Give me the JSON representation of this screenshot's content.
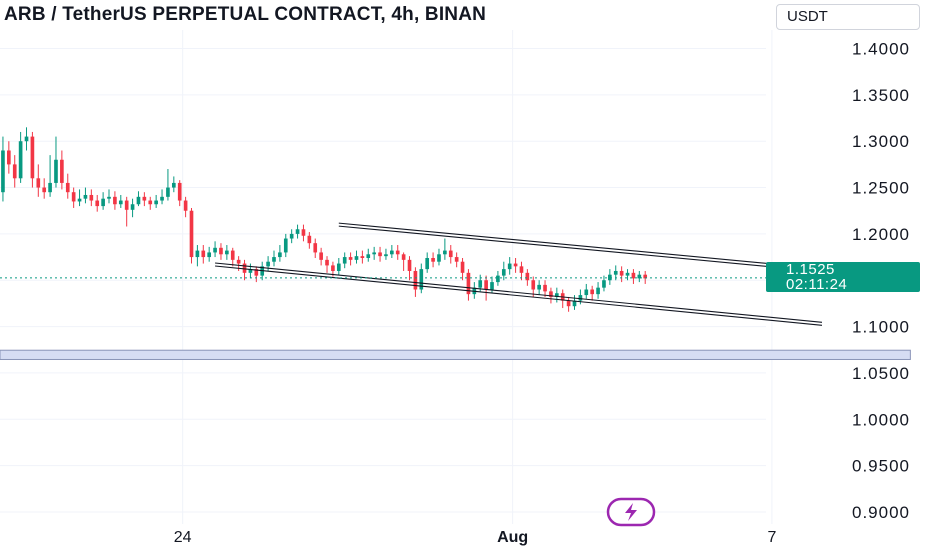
{
  "header": {
    "title": "ARB / TetherUS PERPETUAL CONTRACT, 4h, BINAN",
    "currency_label": "USDT"
  },
  "price_tag": {
    "price": "1.1525",
    "countdown": "02:11:24"
  },
  "colors": {
    "up": "#089981",
    "down": "#f23645",
    "grid": "#f0f3fa",
    "zone_fill": "#d6dcf3",
    "zone_border": "#8a94b8",
    "channel": "#131722",
    "price_line": "#089981",
    "icon_purple": "#9c27b0"
  },
  "icons": {
    "badge": "lightning-bolt-icon"
  },
  "chart_data": {
    "type": "candlestick",
    "timeframe": "4h",
    "y_axis": {
      "ylim": [
        0.887,
        1.42
      ],
      "ticks": [
        "1.4000",
        "1.3500",
        "1.3000",
        "1.2500",
        "1.2000",
        "1.1500",
        "1.1000",
        "1.0500",
        "1.0000",
        "0.9500",
        "0.9000"
      ],
      "tick_values": [
        1.4,
        1.35,
        1.3,
        1.25,
        1.2,
        1.15,
        1.1,
        1.05,
        1.0,
        0.95,
        0.9
      ]
    },
    "x_axis": {
      "bar_range": [
        -0.5,
        129.5
      ],
      "ticks": [
        {
          "label": "24",
          "bar": 30.5
        },
        {
          "label": "Aug",
          "bar": 86.5
        },
        {
          "label": "7",
          "bar": 130.5
        }
      ]
    },
    "current_price": 1.1525,
    "candles": [
      [
        1.245,
        1.29,
        1.305,
        1.235
      ],
      [
        1.29,
        1.275,
        1.3,
        1.265
      ],
      [
        1.275,
        1.26,
        1.285,
        1.25
      ],
      [
        1.26,
        1.3,
        1.31,
        1.255
      ],
      [
        1.3,
        1.305,
        1.315,
        1.29
      ],
      [
        1.305,
        1.26,
        1.31,
        1.25
      ],
      [
        1.26,
        1.25,
        1.275,
        1.24
      ],
      [
        1.25,
        1.245,
        1.26,
        1.238
      ],
      [
        1.245,
        1.255,
        1.285,
        1.24
      ],
      [
        1.255,
        1.28,
        1.305,
        1.25
      ],
      [
        1.28,
        1.255,
        1.29,
        1.248
      ],
      [
        1.255,
        1.245,
        1.265,
        1.238
      ],
      [
        1.245,
        1.235,
        1.25,
        1.228
      ],
      [
        1.235,
        1.238,
        1.248,
        1.23
      ],
      [
        1.238,
        1.242,
        1.25,
        1.233
      ],
      [
        1.242,
        1.236,
        1.248,
        1.23
      ],
      [
        1.236,
        1.23,
        1.242,
        1.224
      ],
      [
        1.23,
        1.238,
        1.245,
        1.226
      ],
      [
        1.238,
        1.24,
        1.248,
        1.233
      ],
      [
        1.24,
        1.232,
        1.246,
        1.226
      ],
      [
        1.232,
        1.236,
        1.242,
        1.228
      ],
      [
        1.236,
        1.226,
        1.24,
        1.208
      ],
      [
        1.226,
        1.232,
        1.238,
        1.218
      ],
      [
        1.232,
        1.24,
        1.246,
        1.23
      ],
      [
        1.24,
        1.236,
        1.245,
        1.23
      ],
      [
        1.236,
        1.232,
        1.24,
        1.226
      ],
      [
        1.232,
        1.236,
        1.242,
        1.228
      ],
      [
        1.236,
        1.24,
        1.248,
        1.232
      ],
      [
        1.24,
        1.25,
        1.27,
        1.236
      ],
      [
        1.25,
        1.255,
        1.262,
        1.245
      ],
      [
        1.255,
        1.236,
        1.258,
        1.23
      ],
      [
        1.236,
        1.225,
        1.24,
        1.218
      ],
      [
        1.225,
        1.175,
        1.228,
        1.168
      ],
      [
        1.175,
        1.182,
        1.188,
        1.165
      ],
      [
        1.182,
        1.175,
        1.188,
        1.168
      ],
      [
        1.175,
        1.18,
        1.186,
        1.17
      ],
      [
        1.18,
        1.185,
        1.192,
        1.175
      ],
      [
        1.185,
        1.178,
        1.19,
        1.172
      ],
      [
        1.178,
        1.182,
        1.188,
        1.172
      ],
      [
        1.182,
        1.172,
        1.185,
        1.165
      ],
      [
        1.172,
        1.168,
        1.176,
        1.16
      ],
      [
        1.168,
        1.158,
        1.172,
        1.15
      ],
      [
        1.158,
        1.162,
        1.168,
        1.152
      ],
      [
        1.162,
        1.155,
        1.165,
        1.148
      ],
      [
        1.155,
        1.165,
        1.17,
        1.15
      ],
      [
        1.165,
        1.17,
        1.176,
        1.16
      ],
      [
        1.17,
        1.175,
        1.182,
        1.165
      ],
      [
        1.175,
        1.18,
        1.188,
        1.17
      ],
      [
        1.18,
        1.195,
        1.2,
        1.175
      ],
      [
        1.195,
        1.2,
        1.205,
        1.19
      ],
      [
        1.2,
        1.205,
        1.21,
        1.195
      ],
      [
        1.205,
        1.198,
        1.21,
        1.192
      ],
      [
        1.198,
        1.19,
        1.202,
        1.184
      ],
      [
        1.19,
        1.18,
        1.195,
        1.174
      ],
      [
        1.18,
        1.172,
        1.185,
        1.166
      ],
      [
        1.172,
        1.166,
        1.176,
        1.158
      ],
      [
        1.166,
        1.16,
        1.17,
        1.154
      ],
      [
        1.16,
        1.168,
        1.174,
        1.156
      ],
      [
        1.168,
        1.175,
        1.18,
        1.163
      ],
      [
        1.175,
        1.172,
        1.18,
        1.166
      ],
      [
        1.172,
        1.176,
        1.182,
        1.168
      ],
      [
        1.176,
        1.174,
        1.182,
        1.168
      ],
      [
        1.174,
        1.178,
        1.184,
        1.17
      ],
      [
        1.178,
        1.18,
        1.186,
        1.172
      ],
      [
        1.18,
        1.176,
        1.186,
        1.17
      ],
      [
        1.176,
        1.178,
        1.184,
        1.172
      ],
      [
        1.178,
        1.182,
        1.188,
        1.174
      ],
      [
        1.182,
        1.178,
        1.188,
        1.172
      ],
      [
        1.178,
        1.172,
        1.18,
        1.16
      ],
      [
        1.172,
        1.16,
        1.176,
        1.15
      ],
      [
        1.16,
        1.14,
        1.164,
        1.132
      ],
      [
        1.14,
        1.162,
        1.168,
        1.136
      ],
      [
        1.162,
        1.174,
        1.18,
        1.158
      ],
      [
        1.174,
        1.17,
        1.18,
        1.164
      ],
      [
        1.17,
        1.178,
        1.184,
        1.166
      ],
      [
        1.178,
        1.182,
        1.195,
        1.172
      ],
      [
        1.182,
        1.175,
        1.188,
        1.168
      ],
      [
        1.175,
        1.17,
        1.18,
        1.164
      ],
      [
        1.17,
        1.158,
        1.174,
        1.15
      ],
      [
        1.158,
        1.135,
        1.162,
        1.128
      ],
      [
        1.135,
        1.142,
        1.148,
        1.13
      ],
      [
        1.142,
        1.15,
        1.156,
        1.138
      ],
      [
        1.15,
        1.14,
        1.155,
        1.128
      ],
      [
        1.14,
        1.148,
        1.154,
        1.136
      ],
      [
        1.148,
        1.155,
        1.16,
        1.144
      ],
      [
        1.155,
        1.162,
        1.17,
        1.15
      ],
      [
        1.162,
        1.168,
        1.175,
        1.156
      ],
      [
        1.168,
        1.165,
        1.174,
        1.158
      ],
      [
        1.165,
        1.158,
        1.17,
        1.15
      ],
      [
        1.158,
        1.15,
        1.162,
        1.144
      ],
      [
        1.15,
        1.14,
        1.154,
        1.132
      ],
      [
        1.14,
        1.145,
        1.15,
        1.134
      ],
      [
        1.145,
        1.138,
        1.15,
        1.132
      ],
      [
        1.138,
        1.132,
        1.142,
        1.125
      ],
      [
        1.132,
        1.136,
        1.142,
        1.126
      ],
      [
        1.136,
        1.128,
        1.14,
        1.12
      ],
      [
        1.128,
        1.122,
        1.132,
        1.116
      ],
      [
        1.122,
        1.128,
        1.134,
        1.118
      ],
      [
        1.128,
        1.134,
        1.14,
        1.124
      ],
      [
        1.134,
        1.14,
        1.146,
        1.13
      ],
      [
        1.14,
        1.135,
        1.144,
        1.128
      ],
      [
        1.135,
        1.142,
        1.148,
        1.13
      ],
      [
        1.142,
        1.15,
        1.155,
        1.138
      ],
      [
        1.15,
        1.156,
        1.162,
        1.145
      ],
      [
        1.156,
        1.16,
        1.166,
        1.15
      ],
      [
        1.16,
        1.155,
        1.165,
        1.148
      ],
      [
        1.155,
        1.158,
        1.162,
        1.15
      ],
      [
        1.158,
        1.152,
        1.162,
        1.146
      ],
      [
        1.152,
        1.156,
        1.16,
        1.148
      ],
      [
        1.156,
        1.152,
        1.16,
        1.146
      ]
    ],
    "channel_lines": [
      {
        "from": [
          57,
          1.21
        ],
        "to": [
          149,
          1.155
        ]
      },
      {
        "from": [
          36,
          1.167
        ],
        "to": [
          139,
          1.103
        ]
      }
    ],
    "zone": {
      "bar_from": -0.5,
      "bar_to": 154,
      "y_low": 1.0645,
      "y_high": 1.0745
    },
    "grid": true,
    "legend": "none"
  }
}
